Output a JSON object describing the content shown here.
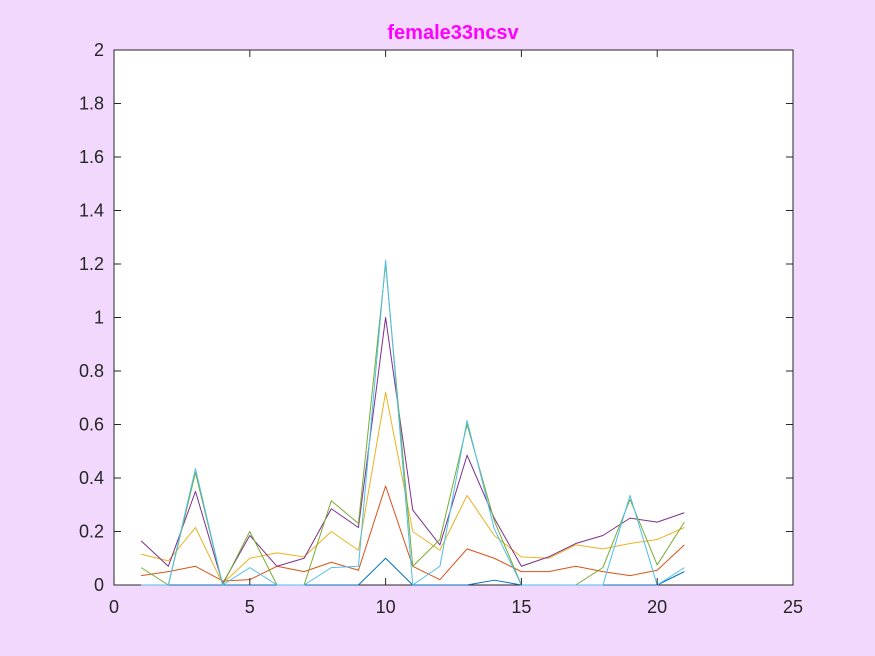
{
  "background_color": "#f2d8fc",
  "chart_data": {
    "type": "line",
    "title": "female33ncsv",
    "title_color": "#ff00ff",
    "xlabel": "",
    "ylabel": "",
    "xlim": [
      0,
      25
    ],
    "ylim": [
      0,
      2
    ],
    "x_ticks": [
      0,
      5,
      10,
      15,
      20,
      25
    ],
    "y_ticks": [
      0,
      0.2,
      0.4,
      0.6,
      0.8,
      1,
      1.2,
      1.4,
      1.6,
      1.8,
      2
    ],
    "x_tick_labels": [
      "0",
      "5",
      "10",
      "15",
      "20",
      "25"
    ],
    "y_tick_labels": [
      "0",
      "0.2",
      "0.4",
      "0.6",
      "0.8",
      "1",
      "1.2",
      "1.4",
      "1.6",
      "1.8",
      "2"
    ],
    "grid": false,
    "legend": "none",
    "x": [
      1,
      2,
      3,
      4,
      5,
      6,
      7,
      8,
      9,
      10,
      11,
      12,
      13,
      14,
      15,
      16,
      17,
      18,
      19,
      20,
      21
    ],
    "series": [
      {
        "color": "#0072bd",
        "values": [
          0,
          0,
          0,
          0,
          0,
          0,
          0,
          0,
          0,
          0.1,
          0,
          0,
          0,
          0.018,
          0,
          0,
          0,
          0,
          0,
          0,
          0.05
        ]
      },
      {
        "color": "#d95319",
        "values": [
          0.035,
          0.05,
          0.07,
          0.015,
          0.02,
          0.07,
          0.05,
          0.085,
          0.055,
          0.37,
          0.07,
          0.02,
          0.135,
          0.1,
          0.05,
          0.05,
          0.07,
          0.05,
          0.035,
          0.055,
          0.15
        ]
      },
      {
        "color": "#edb120",
        "values": [
          0.115,
          0.09,
          0.215,
          0.005,
          0.1,
          0.12,
          0.105,
          0.2,
          0.13,
          0.72,
          0.2,
          0.13,
          0.335,
          0.185,
          0.105,
          0.1,
          0.15,
          0.135,
          0.155,
          0.17,
          0.215
        ]
      },
      {
        "color": "#7e2f8e",
        "values": [
          0.165,
          0.07,
          0.35,
          0.005,
          0.185,
          0.07,
          0.1,
          0.285,
          0.215,
          1.0,
          0.28,
          0.15,
          0.485,
          0.25,
          0.07,
          0.105,
          0.155,
          0.185,
          0.25,
          0.235,
          0.27
        ]
      },
      {
        "color": "#77ac30",
        "values": [
          0.065,
          0,
          0.42,
          0,
          0.2,
          0,
          0,
          0.315,
          0.23,
          1.2,
          0.07,
          0.17,
          0.6,
          0.24,
          0,
          0,
          0,
          0.065,
          0.32,
          0.075,
          0.235
        ]
      },
      {
        "color": "#4dbeee",
        "values": [
          0,
          0,
          0.435,
          0,
          0.065,
          0,
          0,
          0.065,
          0.07,
          1.215,
          0,
          0.07,
          0.615,
          0.21,
          0,
          0,
          0,
          0,
          0.335,
          0,
          0.065
        ]
      }
    ]
  }
}
